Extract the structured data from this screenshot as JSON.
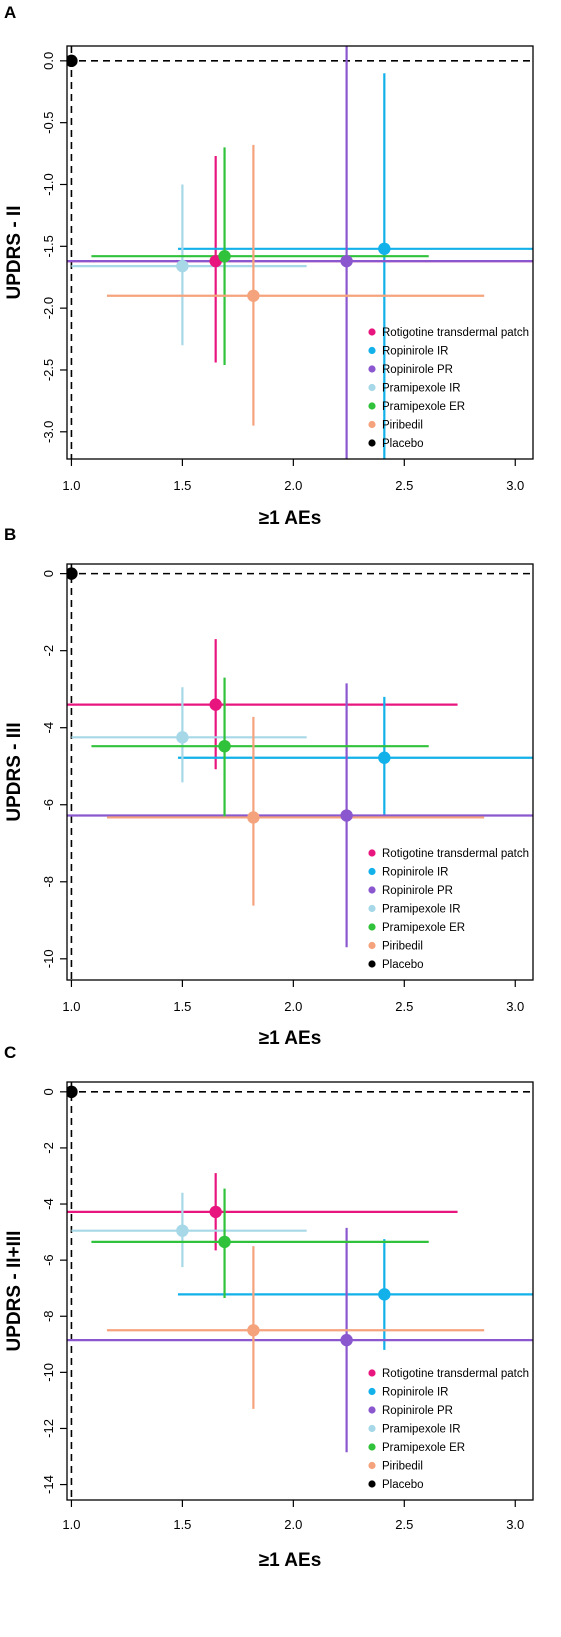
{
  "series_meta": [
    {
      "name": "Rotigotine transdermal patch",
      "color": "#E8157E"
    },
    {
      "name": "Ropinirole IR",
      "color": "#12B1EA"
    },
    {
      "name": "Ropinirole PR",
      "color": "#8B57CF"
    },
    {
      "name": "Pramipexole IR",
      "color": "#A6D8E8"
    },
    {
      "name": "Pramipexole ER",
      "color": "#2FC23A"
    },
    {
      "name": "Piribedil",
      "color": "#F4A37D"
    },
    {
      "name": "Placebo",
      "color": "#000000"
    }
  ],
  "chart_data": [
    {
      "type": "scatter",
      "panel": "A",
      "xlabel": "≥1 AEs",
      "ylabel": "UPDRS - II",
      "xlim": [
        0.98,
        3.08
      ],
      "ylim": [
        -3.22,
        0.12
      ],
      "xticks": [
        "1.0",
        "1.5",
        "2.0",
        "2.5",
        "3.0"
      ],
      "yticks": [
        "0.0",
        "-0.5",
        "-1.0",
        "-1.5",
        "-2.0",
        "-2.5",
        "-3.0"
      ],
      "legend_position": "bottom-right",
      "reference_lines": {
        "x": 1.0,
        "y": 0.0
      },
      "points": [
        {
          "series": "Rotigotine transdermal patch",
          "x": 1.65,
          "y": -1.62,
          "x_low": 0.98,
          "x_high": 3.08,
          "y_low": -2.44,
          "y_high": -0.77
        },
        {
          "series": "Ropinirole IR",
          "x": 2.41,
          "y": -1.52,
          "x_low": 1.48,
          "x_high": 3.08,
          "y_low": -3.22,
          "y_high": -0.1
        },
        {
          "series": "Ropinirole PR",
          "x": 2.24,
          "y": -1.62,
          "x_low": 0.98,
          "x_high": 3.08,
          "y_low": -3.22,
          "y_high": 0.12
        },
        {
          "series": "Pramipexole IR",
          "x": 1.5,
          "y": -1.66,
          "x_low": 1.0,
          "x_high": 2.06,
          "y_low": -2.3,
          "y_high": -1.0
        },
        {
          "series": "Pramipexole ER",
          "x": 1.69,
          "y": -1.58,
          "x_low": 1.09,
          "x_high": 2.61,
          "y_low": -2.46,
          "y_high": -0.7
        },
        {
          "series": "Piribedil",
          "x": 1.82,
          "y": -1.9,
          "x_low": 1.16,
          "x_high": 2.86,
          "y_low": -2.95,
          "y_high": -0.68
        },
        {
          "series": "Placebo",
          "x": 1.0,
          "y": 0.0
        }
      ]
    },
    {
      "type": "scatter",
      "panel": "B",
      "xlabel": "≥1 AEs",
      "ylabel": "UPDRS - III",
      "xlim": [
        0.98,
        3.08
      ],
      "ylim": [
        -10.55,
        0.25
      ],
      "xticks": [
        "1.0",
        "1.5",
        "2.0",
        "2.5",
        "3.0"
      ],
      "yticks": [
        "0",
        "-2",
        "-4",
        "-6",
        "-8",
        "-10"
      ],
      "legend_position": "bottom-right",
      "reference_lines": {
        "x": 1.0,
        "y": 0.0
      },
      "points": [
        {
          "series": "Rotigotine transdermal patch",
          "x": 1.65,
          "y": -3.4,
          "x_low": 0.98,
          "x_high": 2.74,
          "y_low": -5.08,
          "y_high": -1.7
        },
        {
          "series": "Ropinirole IR",
          "x": 2.41,
          "y": -4.78,
          "x_low": 1.48,
          "x_high": 3.08,
          "y_low": -6.32,
          "y_high": -3.2
        },
        {
          "series": "Ropinirole PR",
          "x": 2.24,
          "y": -6.28,
          "x_low": 0.98,
          "x_high": 3.08,
          "y_low": -9.7,
          "y_high": -2.85
        },
        {
          "series": "Pramipexole IR",
          "x": 1.5,
          "y": -4.25,
          "x_low": 1.0,
          "x_high": 2.06,
          "y_low": -5.42,
          "y_high": -2.95
        },
        {
          "series": "Pramipexole ER",
          "x": 1.69,
          "y": -4.48,
          "x_low": 1.09,
          "x_high": 2.61,
          "y_low": -6.32,
          "y_high": -2.7
        },
        {
          "series": "Piribedil",
          "x": 1.82,
          "y": -6.33,
          "x_low": 1.16,
          "x_high": 2.86,
          "y_low": -8.62,
          "y_high": -3.72
        },
        {
          "series": "Placebo",
          "x": 1.0,
          "y": 0.0
        }
      ]
    },
    {
      "type": "scatter",
      "panel": "C",
      "xlabel": "≥1 AEs",
      "ylabel": "UPDRS - II+III",
      "xlim": [
        0.98,
        3.08
      ],
      "ylim": [
        -14.55,
        0.35
      ],
      "xticks": [
        "1.0",
        "1.5",
        "2.0",
        "2.5",
        "3.0"
      ],
      "yticks": [
        "0",
        "-2",
        "-4",
        "-6",
        "-8",
        "-10",
        "-12",
        "-14"
      ],
      "legend_position": "bottom-right",
      "reference_lines": {
        "x": 1.0,
        "y": 0.0
      },
      "points": [
        {
          "series": "Rotigotine transdermal patch",
          "x": 1.65,
          "y": -4.28,
          "x_low": 0.98,
          "x_high": 2.74,
          "y_low": -5.65,
          "y_high": -2.9
        },
        {
          "series": "Ropinirole IR",
          "x": 2.41,
          "y": -7.22,
          "x_low": 1.48,
          "x_high": 3.08,
          "y_low": -9.2,
          "y_high": -5.25
        },
        {
          "series": "Ropinirole PR",
          "x": 2.24,
          "y": -8.85,
          "x_low": 0.98,
          "x_high": 3.08,
          "y_low": -12.85,
          "y_high": -4.85
        },
        {
          "series": "Pramipexole IR",
          "x": 1.5,
          "y": -4.95,
          "x_low": 1.0,
          "x_high": 2.06,
          "y_low": -6.25,
          "y_high": -3.6
        },
        {
          "series": "Pramipexole ER",
          "x": 1.69,
          "y": -5.35,
          "x_low": 1.09,
          "x_high": 2.61,
          "y_low": -7.35,
          "y_high": -3.45
        },
        {
          "series": "Piribedil",
          "x": 1.82,
          "y": -8.5,
          "x_low": 1.16,
          "x_high": 2.86,
          "y_low": -11.3,
          "y_high": -5.5
        },
        {
          "series": "Placebo",
          "x": 1.0,
          "y": 0.0
        }
      ]
    }
  ]
}
